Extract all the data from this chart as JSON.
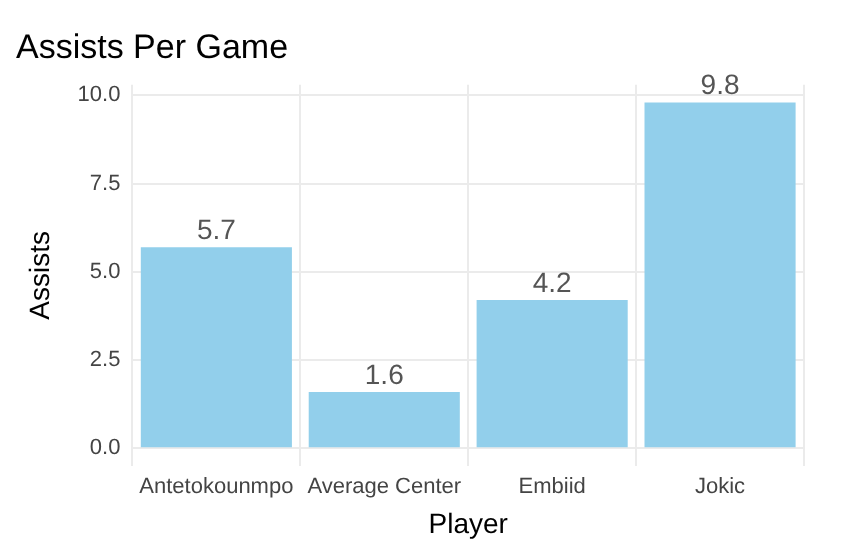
{
  "chart_data": {
    "type": "bar",
    "title": "Assists Per Game",
    "xlabel": "Player",
    "ylabel": "Assists",
    "categories": [
      "Antetokounmpo",
      "Average Center",
      "Embiid",
      "Jokic"
    ],
    "values": [
      5.7,
      1.6,
      4.2,
      9.8
    ],
    "color": "#92cfeb",
    "ylim": [
      -0.5,
      10.3
    ],
    "yticks": [
      {
        "value": 0,
        "label": "0.0"
      },
      {
        "value": 2.5,
        "label": "2.5"
      },
      {
        "value": 5,
        "label": "5.0"
      },
      {
        "value": 7.5,
        "label": "7.5"
      },
      {
        "value": 10,
        "label": "10.0"
      }
    ],
    "grid": true,
    "data_labels": true
  }
}
